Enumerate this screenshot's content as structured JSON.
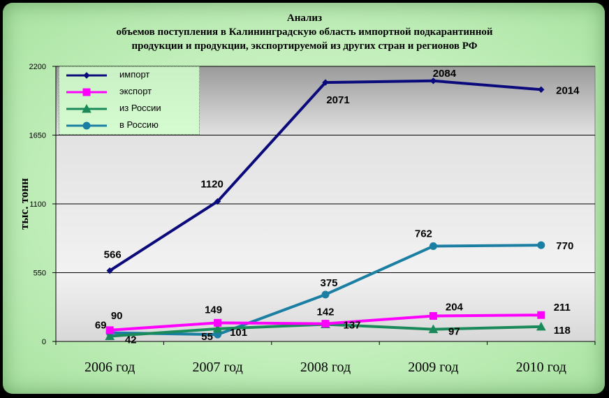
{
  "chart_data": {
    "type": "line",
    "title_lines": [
      "Анализ",
      "объемов поступления в Калининградскую область импортной подкарантинной",
      "продукции и продукции, экспортируемой из других стран и регионов РФ"
    ],
    "ylabel": "тыс. тонн",
    "ylim": [
      0,
      2200
    ],
    "yticks": [
      "0",
      "550",
      "1100",
      "1650",
      "2200"
    ],
    "ytick_values": [
      0,
      550,
      1100,
      1650,
      2200
    ],
    "categories": [
      "2006 год",
      "2007 год",
      "2008 год",
      "2009 год",
      "2010 год"
    ],
    "grid": true,
    "legend_position": "top-left",
    "series": [
      {
        "name": "импорт",
        "values": [
          566,
          1120,
          2071,
          2084,
          2014
        ],
        "labels": [
          "566",
          "1120",
          "2071",
          "2084",
          "2014"
        ],
        "color": "#0a0a7c",
        "marker": "diamond"
      },
      {
        "name": "экспорт",
        "values": [
          90,
          149,
          142,
          204,
          211
        ],
        "labels": [
          "90",
          "149",
          "142",
          "204",
          "211"
        ],
        "color": "#ff00ff",
        "marker": "square"
      },
      {
        "name": "из России",
        "values": [
          42,
          101,
          137,
          97,
          118
        ],
        "labels": [
          "42",
          "101",
          "137",
          "97",
          "118"
        ],
        "color": "#1a8a5a",
        "marker": "triangle"
      },
      {
        "name": "в Россию",
        "values": [
          69,
          55,
          375,
          762,
          770
        ],
        "labels": [
          "69",
          "55",
          "375",
          "762",
          "770"
        ],
        "color": "#1a7fa3",
        "marker": "circle"
      }
    ]
  }
}
